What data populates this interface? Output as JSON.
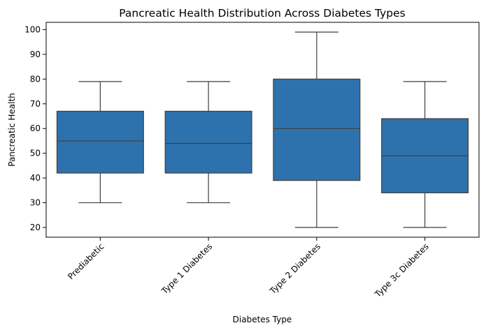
{
  "chart_data": {
    "type": "box",
    "title": "Pancreatic Health Distribution Across Diabetes Types",
    "xlabel": "Diabetes Type",
    "ylabel": "Pancreatic Health",
    "ylim": [
      16.05,
      102.95
    ],
    "yticks": [
      20,
      30,
      40,
      50,
      60,
      70,
      80,
      90,
      100
    ],
    "grid": false,
    "categories": [
      "Prediabetic",
      "Type 1 Diabetes",
      "Type 2 Diabetes",
      "Type 3c Diabetes"
    ],
    "series": [
      {
        "boxes": [
          {
            "whisker_low": 30,
            "q1": 42,
            "median": 55,
            "q3": 67,
            "whisker_high": 79
          },
          {
            "whisker_low": 30,
            "q1": 42,
            "median": 54,
            "q3": 67,
            "whisker_high": 79
          },
          {
            "whisker_low": 20,
            "q1": 39,
            "median": 60,
            "q3": 80,
            "whisker_high": 99
          },
          {
            "whisker_low": 20,
            "q1": 34,
            "median": 49,
            "q3": 64,
            "whisker_high": 79
          }
        ]
      }
    ],
    "colors": {
      "box_fill": "#2d72ad",
      "line": "#3f3f3f",
      "axis": "#000000"
    }
  }
}
